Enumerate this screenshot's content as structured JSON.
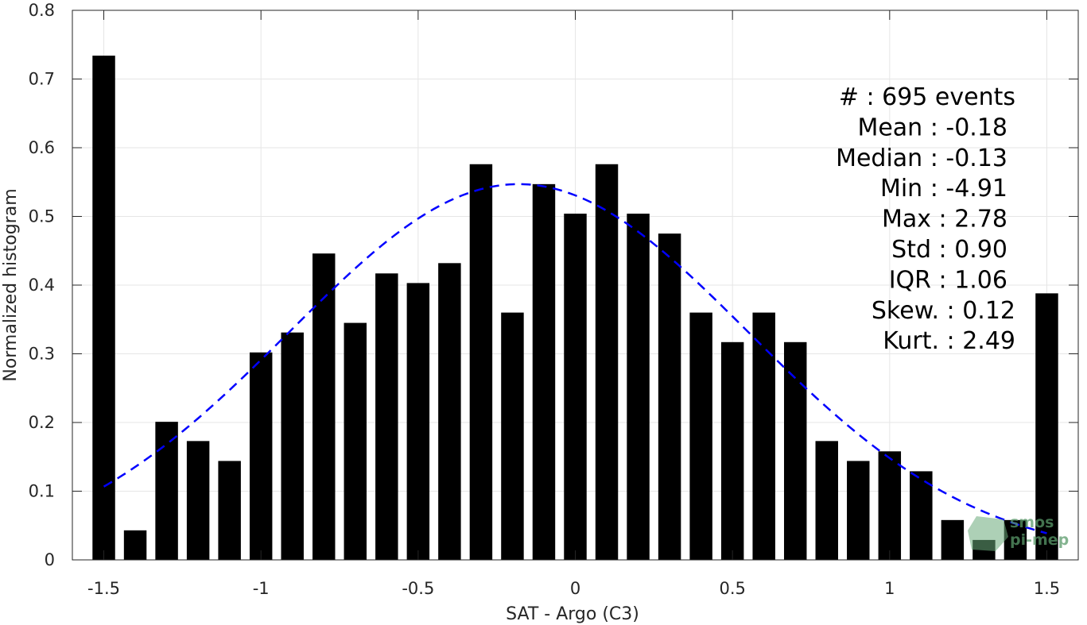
{
  "chart_data": {
    "type": "bar",
    "xlabel": "SAT - Argo (C3)",
    "ylabel": "Normalized histogram",
    "xlim": [
      -1.6,
      1.6
    ],
    "ylim": [
      0,
      0.8
    ],
    "xticks": [
      -1.5,
      -1,
      -0.5,
      0,
      0.5,
      1,
      1.5
    ],
    "xtick_labels": [
      "-1.5",
      "-1",
      "-0.5",
      "0",
      "0.5",
      "1",
      "1.5"
    ],
    "yticks": [
      0,
      0.1,
      0.2,
      0.3,
      0.4,
      0.5,
      0.6,
      0.7,
      0.8
    ],
    "ytick_labels": [
      "0",
      "0.1",
      "0.2",
      "0.3",
      "0.4",
      "0.5",
      "0.6",
      "0.7",
      "0.8"
    ],
    "grid": true,
    "bar_width": 0.072,
    "bar_color": "#000000",
    "x": [
      -1.5,
      -1.4,
      -1.3,
      -1.2,
      -1.1,
      -1.0,
      -0.9,
      -0.8,
      -0.7,
      -0.6,
      -0.5,
      -0.4,
      -0.3,
      -0.2,
      -0.1,
      0.0,
      0.1,
      0.2,
      0.3,
      0.4,
      0.5,
      0.6,
      0.7,
      0.8,
      0.9,
      1.0,
      1.1,
      1.2,
      1.3,
      1.4,
      1.5
    ],
    "values": [
      0.734,
      0.043,
      0.201,
      0.173,
      0.144,
      0.302,
      0.331,
      0.446,
      0.345,
      0.417,
      0.403,
      0.432,
      0.576,
      0.36,
      0.547,
      0.504,
      0.576,
      0.504,
      0.475,
      0.36,
      0.317,
      0.36,
      0.317,
      0.173,
      0.144,
      0.158,
      0.129,
      0.058,
      0.029,
      0.058,
      0.388
    ],
    "fit_curve": {
      "type": "gaussian",
      "mean": -0.18,
      "std": 0.73,
      "peak": 0.547,
      "x_range": [
        -1.5,
        1.5
      ],
      "color": "#0000ff",
      "style": "dashed"
    },
    "annotations": [
      "#  : 695 events",
      "Mean : -0.18",
      "Median : -0.13",
      "Min : -4.91",
      "Max : 2.78",
      "Std : 0.90",
      "IQR : 1.06",
      "Skew. : 0.12",
      "Kurt. : 2.49"
    ]
  },
  "logo": {
    "line1": "smos",
    "line2": "pi-mep"
  }
}
